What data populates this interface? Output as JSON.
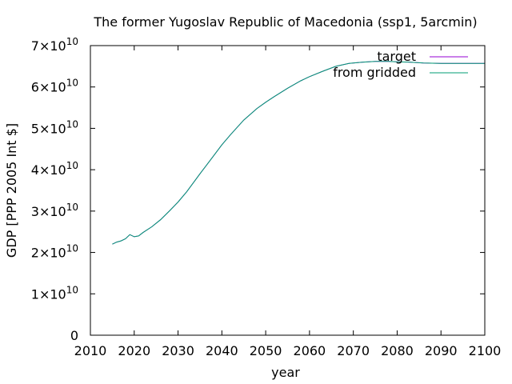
{
  "chart_data": {
    "type": "line",
    "title": "The former Yugoslav Republic of Macedonia (ssp1, 5arcmin)",
    "xlabel": "year",
    "ylabel": "GDP [PPP 2005 Int $]",
    "xlim": [
      2010,
      2100
    ],
    "ylim": [
      0,
      70000000000
    ],
    "x_ticks": [
      "2010",
      "2020",
      "2030",
      "2040",
      "2050",
      "2060",
      "2070",
      "2080",
      "2090",
      "2100"
    ],
    "y_ticks": [
      {
        "value": 0,
        "mantissa": "0",
        "exp": ""
      },
      {
        "value": 10000000000,
        "mantissa": "1×10",
        "exp": "10"
      },
      {
        "value": 20000000000,
        "mantissa": "2×10",
        "exp": "10"
      },
      {
        "value": 30000000000,
        "mantissa": "3×10",
        "exp": "10"
      },
      {
        "value": 40000000000,
        "mantissa": "4×10",
        "exp": "10"
      },
      {
        "value": 50000000000,
        "mantissa": "5×10",
        "exp": "10"
      },
      {
        "value": 60000000000,
        "mantissa": "6×10",
        "exp": "10"
      },
      {
        "value": 70000000000,
        "mantissa": "7×10",
        "exp": "10"
      }
    ],
    "legend_position": "top-right",
    "grid": false,
    "series": [
      {
        "name": "target",
        "color": "#9400d3",
        "x": [
          2015,
          2016,
          2017,
          2018,
          2019,
          2020,
          2021,
          2022,
          2024,
          2026,
          2028,
          2030,
          2032,
          2035,
          2038,
          2040,
          2042,
          2045,
          2048,
          2050,
          2052,
          2055,
          2058,
          2060,
          2063,
          2066,
          2069,
          2072,
          2075,
          2078,
          2080,
          2083,
          2086,
          2090,
          2095,
          2100
        ],
        "values": [
          22000000000.0,
          22500000000.0,
          22800000000.0,
          23300000000.0,
          24300000000.0,
          23800000000.0,
          24000000000.0,
          24800000000.0,
          26200000000.0,
          27900000000.0,
          30000000000.0,
          32200000000.0,
          34700000000.0,
          39000000000.0,
          43200000000.0,
          46000000000.0,
          48500000000.0,
          52000000000.0,
          54800000000.0,
          56300000000.0,
          57700000000.0,
          59700000000.0,
          61500000000.0,
          62500000000.0,
          63800000000.0,
          65000000000.0,
          65700000000.0,
          66000000000.0,
          66200000000.0,
          66200000000.0,
          66100000000.0,
          66000000000.0,
          65800000000.0,
          65700000000.0,
          65700000000.0,
          65700000000.0
        ]
      },
      {
        "name": "from gridded",
        "color": "#009e73",
        "x": [
          2015,
          2016,
          2017,
          2018,
          2019,
          2020,
          2021,
          2022,
          2024,
          2026,
          2028,
          2030,
          2032,
          2035,
          2038,
          2040,
          2042,
          2045,
          2048,
          2050,
          2052,
          2055,
          2058,
          2060,
          2063,
          2066,
          2069,
          2072,
          2075,
          2078,
          2080,
          2083,
          2086,
          2090,
          2095,
          2100
        ],
        "values": [
          22000000000.0,
          22500000000.0,
          22800000000.0,
          23300000000.0,
          24300000000.0,
          23800000000.0,
          24000000000.0,
          24800000000.0,
          26200000000.0,
          27900000000.0,
          30000000000.0,
          32200000000.0,
          34700000000.0,
          39000000000.0,
          43200000000.0,
          46000000000.0,
          48500000000.0,
          52000000000.0,
          54800000000.0,
          56300000000.0,
          57700000000.0,
          59700000000.0,
          61500000000.0,
          62500000000.0,
          63800000000.0,
          65000000000.0,
          65700000000.0,
          66000000000.0,
          66200000000.0,
          66200000000.0,
          66100000000.0,
          66000000000.0,
          65800000000.0,
          65700000000.0,
          65700000000.0,
          65700000000.0
        ]
      }
    ]
  }
}
